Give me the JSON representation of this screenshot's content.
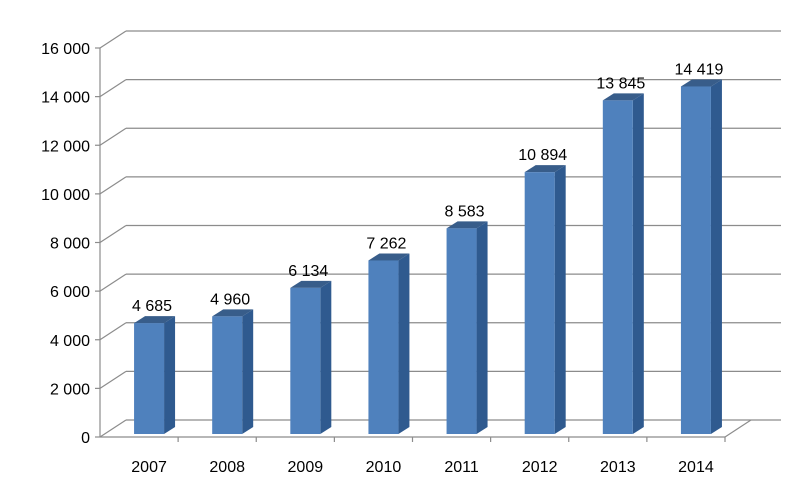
{
  "chart_data": {
    "type": "bar",
    "title": "",
    "xlabel": "",
    "ylabel": "",
    "categories": [
      "2007",
      "2008",
      "2009",
      "2010",
      "2011",
      "2012",
      "2013",
      "2014"
    ],
    "values": [
      4685,
      4960,
      6134,
      7262,
      8583,
      10894,
      13845,
      14419
    ],
    "data_labels": [
      "4 685",
      "4 960",
      "6 134",
      "7 262",
      "8 583",
      "10 894",
      "13 845",
      "14 419"
    ],
    "ylim": [
      0,
      16000
    ],
    "yticks": [
      0,
      2000,
      4000,
      6000,
      8000,
      10000,
      12000,
      14000,
      16000
    ],
    "ytick_labels": [
      "0",
      "2 000",
      "4 000",
      "6 000",
      "8 000",
      "10 000",
      "12 000",
      "14 000",
      "16 000"
    ],
    "grid": true,
    "legend": "none",
    "style": "3d-column",
    "colors": {
      "bar_front": "#4f81bd",
      "bar_side": "#2f5a8f",
      "bar_top": "#385d8a",
      "grid": "#8c8c8c"
    }
  }
}
